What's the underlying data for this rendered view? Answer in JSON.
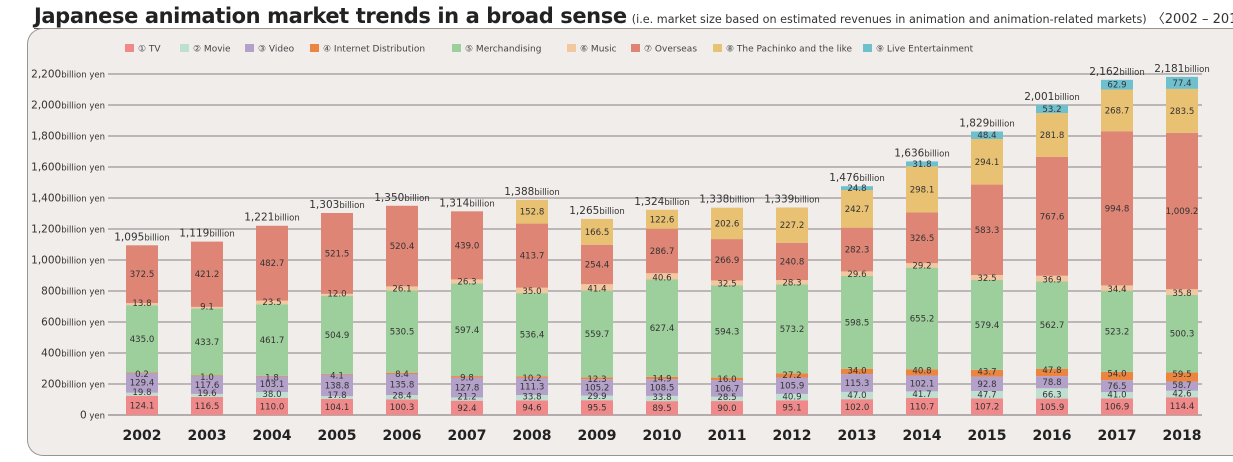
{
  "title": {
    "main": "Japanese animation market trends in a broad sense",
    "subtitle": "(i.e. market size based on estimated revenues in animation and animation-related markets)",
    "range": "〈2002 – 2018〉"
  },
  "colors": {
    "TV": "#f08a8a",
    "Movie": "#bfdfd0",
    "Video": "#b4a1c9",
    "Internet Distribution": "#ec8540",
    "Merchandising": "#9dcf9c",
    "Music": "#f3c79f",
    "Overseas": "#df8575",
    "The Pachinko and the like": "#e8c172",
    "Live Entertainment": "#6fc0cf",
    "background": "#f1edeb",
    "gridline": "#9d9797"
  },
  "chart_data": {
    "type": "bar",
    "stacked": true,
    "title": "Japanese animation market trends in a broad sense",
    "subtitle": "(i.e. market size based on estimated revenues in animation and animation-related markets) 〈2002 – 2018〉",
    "xlabel": "",
    "ylabel": "",
    "unit": "billion yen",
    "ylim": [
      0,
      2200
    ],
    "grid": true,
    "legend_position": "top",
    "yticks": [
      0,
      200,
      400,
      600,
      800,
      1000,
      1200,
      1400,
      1600,
      1800,
      2000,
      2200
    ],
    "ytick_labels": [
      {
        "num": "0",
        "unit": " yen"
      },
      {
        "num": "200",
        "unit": "billion  yen"
      },
      {
        "num": "400",
        "unit": "billion  yen"
      },
      {
        "num": "600",
        "unit": "billion  yen"
      },
      {
        "num": "800",
        "unit": "billion  yen"
      },
      {
        "num": "1,000",
        "unit": "billion  yen"
      },
      {
        "num": "1,200",
        "unit": "billion  yen"
      },
      {
        "num": "1,400",
        "unit": "billion  yen"
      },
      {
        "num": "1,600",
        "unit": "billion  yen"
      },
      {
        "num": "1,800",
        "unit": "billion  yen"
      },
      {
        "num": "2,000",
        "unit": "billion  yen"
      },
      {
        "num": "2,200",
        "unit": "billion  yen"
      }
    ],
    "categories": [
      "2002",
      "2003",
      "2004",
      "2005",
      "2006",
      "2007",
      "2008",
      "2009",
      "2010",
      "2011",
      "2012",
      "2013",
      "2014",
      "2015",
      "2016",
      "2017",
      "2018"
    ],
    "series": [
      {
        "name": "TV",
        "legend": "① TV",
        "values": [
          124.1,
          116.5,
          110.0,
          104.1,
          100.3,
          92.4,
          94.6,
          95.5,
          89.5,
          90.0,
          95.1,
          102.0,
          110.7,
          107.2,
          105.9,
          106.9,
          114.4
        ]
      },
      {
        "name": "Movie",
        "legend": "② Movie",
        "values": [
          19.8,
          19.6,
          38.0,
          17.8,
          28.4,
          21.2,
          33.8,
          29.9,
          33.8,
          28.5,
          40.9,
          47.0,
          41.7,
          47.7,
          66.3,
          41.0,
          42.6
        ]
      },
      {
        "name": "Video",
        "legend": "③ Video",
        "values": [
          129.4,
          117.6,
          103.1,
          138.8,
          135.8,
          127.8,
          111.3,
          105.2,
          108.5,
          106.7,
          105.9,
          115.3,
          102.1,
          92.8,
          78.8,
          76.5,
          58.7
        ]
      },
      {
        "name": "Internet Distribution",
        "legend": "④ Internet Distribution",
        "values": [
          0.2,
          1.0,
          1.8,
          4.1,
          8.4,
          9.8,
          10.2,
          12.3,
          14.9,
          16.0,
          27.2,
          34.0,
          40.8,
          43.7,
          47.8,
          54.0,
          59.5
        ]
      },
      {
        "name": "Merchandising",
        "legend": "⑤ Merchandising",
        "values": [
          435.0,
          433.7,
          461.7,
          504.9,
          530.5,
          597.4,
          536.4,
          559.7,
          627.4,
          594.3,
          573.2,
          598.5,
          655.2,
          579.4,
          562.7,
          523.2,
          500.3
        ]
      },
      {
        "name": "Music",
        "legend": "⑥ Music",
        "values": [
          13.8,
          9.1,
          23.5,
          12.0,
          26.1,
          26.3,
          35.0,
          41.4,
          40.6,
          32.5,
          28.3,
          29.6,
          29.2,
          32.5,
          36.9,
          34.4,
          35.8
        ]
      },
      {
        "name": "Overseas",
        "legend": "⑦ Overseas",
        "values": [
          372.5,
          421.2,
          482.7,
          521.5,
          520.4,
          439.0,
          413.7,
          254.4,
          286.7,
          266.9,
          240.8,
          282.3,
          326.5,
          583.3,
          767.6,
          994.8,
          1009.2
        ]
      },
      {
        "name": "The Pachinko and the like",
        "legend": "⑧ The Pachinko and the like",
        "values": [
          null,
          null,
          null,
          null,
          null,
          null,
          152.8,
          166.5,
          122.6,
          202.6,
          227.2,
          242.7,
          298.1,
          294.1,
          281.8,
          268.7,
          283.5
        ]
      },
      {
        "name": "Live Entertainment",
        "legend": "⑨ Live Entertainment",
        "values": [
          null,
          null,
          null,
          null,
          null,
          null,
          null,
          null,
          null,
          null,
          null,
          24.8,
          31.8,
          48.4,
          53.2,
          62.9,
          77.4
        ]
      }
    ],
    "value_labels": [
      [
        "124.1",
        "19.8",
        "129.4",
        "0.2",
        "435.0",
        "13.8",
        "372.5",
        "",
        ""
      ],
      [
        "116.5",
        "19.6",
        "117.6",
        "1.0",
        "433.7",
        "9.1",
        "421.2",
        "",
        ""
      ],
      [
        "110.0",
        "38.0",
        "103.1",
        "1.8",
        "461.7",
        "23.5",
        "482.7",
        "",
        ""
      ],
      [
        "104.1",
        "17.8",
        "138.8",
        "4.1",
        "504.9",
        "12.0",
        "521.5",
        "",
        ""
      ],
      [
        "100.3",
        "28.4",
        "135.8",
        "8.4",
        "530.5",
        "26.1",
        "520.4",
        "",
        ""
      ],
      [
        "92.4",
        "21.2",
        "127.8",
        "9.8",
        "597.4",
        "26.3",
        "439.0",
        "",
        ""
      ],
      [
        "94.6",
        "33.8",
        "111.3",
        "10.2",
        "536.4",
        "35.0",
        "413.7",
        "152.8",
        ""
      ],
      [
        "95.5",
        "29.9",
        "105.2",
        "12.3",
        "559.7",
        "41.4",
        "254.4",
        "166.5",
        ""
      ],
      [
        "89.5",
        "33.8",
        "108.5",
        "14.9",
        "627.4",
        "40.6",
        "286.7",
        "122.6",
        ""
      ],
      [
        "90.0",
        "28.5",
        "106.7",
        "16.0",
        "594.3",
        "32.5",
        "266.9",
        "202.6",
        ""
      ],
      [
        "95.1",
        "40.9",
        "105.9",
        "27.2",
        "573.2",
        "28.3",
        "240.8",
        "227.2",
        ""
      ],
      [
        "102.0",
        "47.0",
        "115.3",
        "34.0",
        "598.5",
        "29.6",
        "282.3",
        "242.7",
        "24.8"
      ],
      [
        "110.7",
        "41.7",
        "102.1",
        "40.8",
        "655.2",
        "29.2",
        "326.5",
        "298.1",
        "31.8"
      ],
      [
        "107.2",
        "47.7",
        "92.8",
        "43.7",
        "579.4",
        "32.5",
        "583.3",
        "294.1",
        "48.4"
      ],
      [
        "105.9",
        "66.3",
        "78.8",
        "47.8",
        "562.7",
        "36.9",
        "767.6",
        "281.8",
        "53.2"
      ],
      [
        "106.9",
        "41.0",
        "76.5",
        "54.0",
        "523.2",
        "34.4",
        "994.8",
        "268.7",
        "62.9"
      ],
      [
        "114.4",
        "42.6",
        "58.7",
        "59.5",
        "500.3",
        "35.8",
        "1,009.2",
        "283.5",
        "77.4"
      ]
    ],
    "totals": [
      1095,
      1119,
      1221,
      1303,
      1350,
      1314,
      1388,
      1265,
      1324,
      1338,
      1339,
      1476,
      1636,
      1829,
      2001,
      2162,
      2181
    ],
    "total_labels": [
      {
        "num": "1,095",
        "unit": "billion"
      },
      {
        "num": "1,119",
        "unit": "billion"
      },
      {
        "num": "1,221",
        "unit": "billion"
      },
      {
        "num": "1,303",
        "unit": "billion"
      },
      {
        "num": "1,350",
        "unit": "billion"
      },
      {
        "num": "1,314",
        "unit": "billion"
      },
      {
        "num": "1,388",
        "unit": "billion"
      },
      {
        "num": "1,265",
        "unit": "billion"
      },
      {
        "num": "1,324",
        "unit": "billion"
      },
      {
        "num": "1,338",
        "unit": "billion"
      },
      {
        "num": "1,339",
        "unit": "billion"
      },
      {
        "num": "1,476",
        "unit": "billion"
      },
      {
        "num": "1,636",
        "unit": "billion"
      },
      {
        "num": "1,829",
        "unit": "billion"
      },
      {
        "num": "2,001",
        "unit": "billion"
      },
      {
        "num": "2,162",
        "unit": "billion"
      },
      {
        "num": "2,181",
        "unit": "billion"
      }
    ]
  }
}
